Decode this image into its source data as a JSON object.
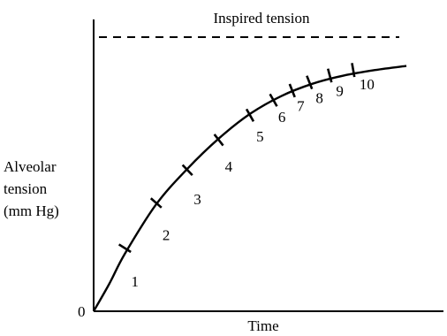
{
  "chart_data": {
    "type": "line",
    "title": "",
    "xlabel": "Time",
    "ylabel_lines": [
      "Alveolar",
      "tension",
      "(mm Hg)"
    ],
    "origin_label": "0",
    "xlim": [
      0,
      10
    ],
    "ylim": [
      0,
      10
    ],
    "grid": false,
    "reference_line": {
      "label": "Inspired tension",
      "y": 10,
      "style": "dashed"
    },
    "curve": {
      "x": [
        0,
        0.5,
        1,
        2,
        3,
        4,
        5,
        6,
        7,
        8,
        9,
        10
      ],
      "y": [
        0,
        1.0,
        2.1,
        3.9,
        5.2,
        6.3,
        7.2,
        7.85,
        8.3,
        8.6,
        8.8,
        8.95
      ]
    },
    "breath_marks": {
      "labels": [
        "1",
        "2",
        "3",
        "4",
        "5",
        "6",
        "7",
        "8",
        "9",
        "10"
      ],
      "x": [
        1.0,
        2.0,
        3.0,
        4.0,
        5.0,
        5.75,
        6.35,
        6.9,
        7.55,
        8.3
      ],
      "y": [
        2.3,
        3.95,
        5.15,
        6.25,
        7.15,
        7.7,
        8.05,
        8.35,
        8.6,
        8.8
      ]
    },
    "annotations": {
      "numbers": [
        "1",
        "2",
        "3",
        "4",
        "5",
        "6",
        "7",
        "8",
        "9",
        "10"
      ],
      "x": [
        1.2,
        2.2,
        3.2,
        4.2,
        5.2,
        5.9,
        6.5,
        7.1,
        7.75,
        8.5
      ],
      "y": [
        0.9,
        2.6,
        3.9,
        5.1,
        6.2,
        6.9,
        7.3,
        7.6,
        7.85,
        8.1
      ]
    }
  }
}
